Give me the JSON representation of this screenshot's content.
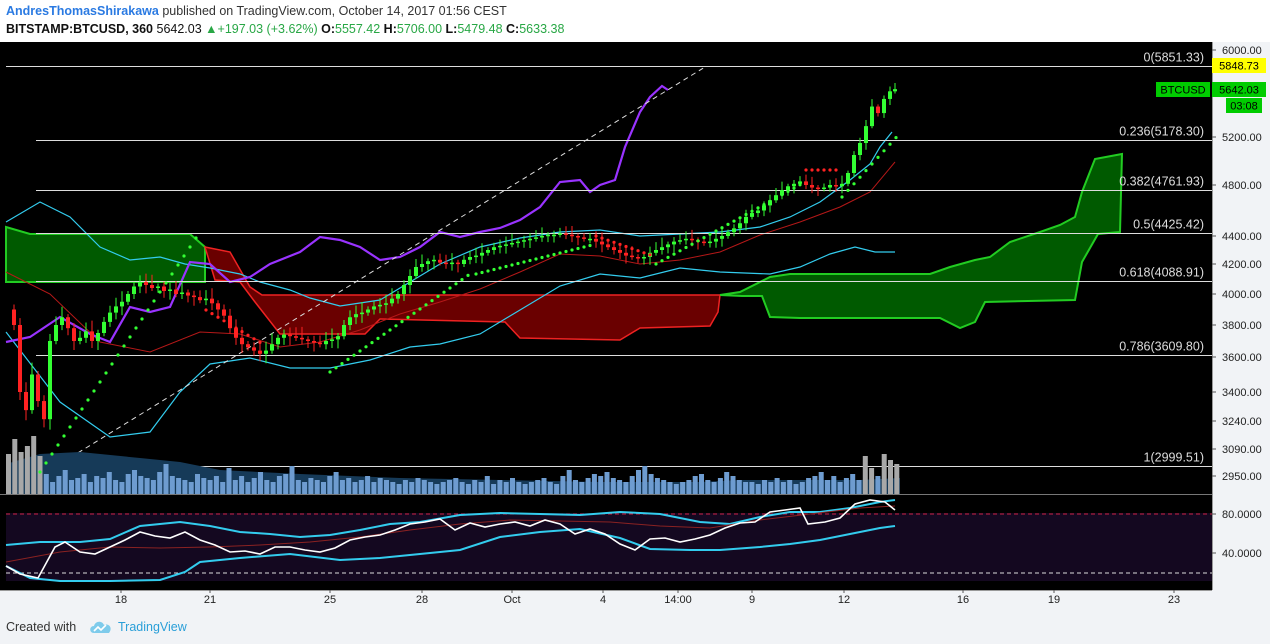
{
  "header": {
    "author": "AndresThomasShirakawa",
    "published": "published on TradingView.com, October 14, 2017 01:56 CEST",
    "symbol": "BITSTAMP:BTCUSD, 360",
    "last": "5642.03",
    "change": "+197.03 (+3.62%)",
    "o_label": "O:",
    "o": "5557.42",
    "h_label": "H:",
    "h": "5706.00",
    "l_label": "L:",
    "l": "5479.48",
    "c_label": "C:",
    "c": "5633.38"
  },
  "footer": {
    "created": "Created with",
    "brand": "TradingView"
  },
  "colors": {
    "background": "#000000",
    "up": "#33ff33",
    "down": "#ff2222",
    "cloud_bull": "#006600",
    "cloud_bear": "#7a0000",
    "bollinger": "#33ccee",
    "baseline": "#9933ff",
    "volume": "#5b8fc7",
    "rsi_line": "#ffffff",
    "rsi_band": "#33ccee",
    "tag_yellow": "#ffff00",
    "tag_green": "#00cc00"
  },
  "chart_data": {
    "type": "candlestick",
    "x_ticks": [
      "18",
      "21",
      "25",
      "28",
      "Oct",
      "4",
      "14:00",
      "9",
      "12",
      "16",
      "19",
      "23"
    ],
    "y_ticks": [
      "6000.00",
      "5200.00",
      "4800.00",
      "4400.00",
      "4200.00",
      "4000.00",
      "3800.00",
      "3600.00",
      "3400.00",
      "3240.00",
      "3090.00",
      "2950.00"
    ],
    "fib_levels": [
      {
        "label": "0(5851.33)",
        "value": 5851.33
      },
      {
        "label": "0.236(5178.30)",
        "value": 5178.3
      },
      {
        "label": "0.382(4761.93)",
        "value": 4761.93
      },
      {
        "label": "0.5(4425.42)",
        "value": 4425.42
      },
      {
        "label": "0.618(4088.91)",
        "value": 4088.91
      },
      {
        "label": "0.786(3609.80)",
        "value": 3609.8
      },
      {
        "label": "1(2999.51)",
        "value": 2999.51
      }
    ],
    "price_tags": {
      "high_tag": "5848.73",
      "symbol_tag": "BTCUSD",
      "last_tag": "5642.03",
      "time_tag": "03:08"
    },
    "rsi_ticks": [
      "80.0000",
      "40.0000"
    ]
  }
}
